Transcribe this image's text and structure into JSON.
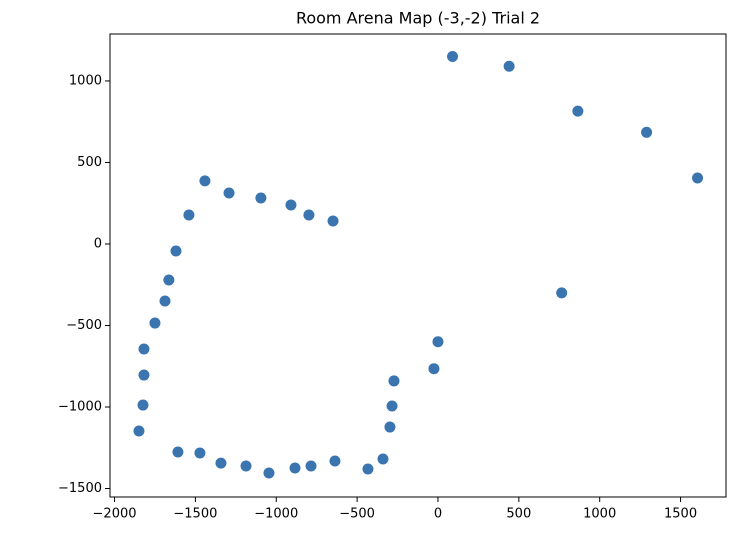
{
  "chart_data": {
    "type": "scatter",
    "title": "Room Arena Map (-3,-2) Trial 2",
    "x": [
      90,
      440,
      865,
      1290,
      1605,
      765,
      0,
      -25,
      -272,
      -284,
      -297,
      -340,
      -433,
      -637,
      -785,
      -884,
      -1045,
      -1187,
      -1342,
      -1472,
      -1608,
      -1849,
      -1824,
      -1818,
      -1818,
      -1750,
      -1688,
      -1664,
      -1620,
      -1540,
      -1441,
      -1292,
      -1095,
      -909,
      -798,
      -649
    ],
    "values": [
      1150,
      1090,
      815,
      685,
      405,
      -300,
      -600,
      -765,
      -840,
      -994,
      -1123,
      -1319,
      -1380,
      -1331,
      -1362,
      -1374,
      -1405,
      -1362,
      -1344,
      -1282,
      -1276,
      -1147,
      -988,
      -804,
      -644,
      -485,
      -350,
      -221,
      -43,
      178,
      387,
      313,
      282,
      239,
      178,
      141
    ],
    "color": "#3b75af",
    "xlim": [
      -2028,
      1781
    ],
    "ylim": [
      -1552,
      1288
    ],
    "xticks": [
      {
        "value": -2000,
        "label": "−2000"
      },
      {
        "value": -1500,
        "label": "−1500"
      },
      {
        "value": -1000,
        "label": "−1000"
      },
      {
        "value": -500,
        "label": "−500"
      },
      0,
      500,
      1000,
      1500
    ],
    "yticks": [
      {
        "value": -1500,
        "label": "−1500"
      },
      {
        "value": -1000,
        "label": "−1000"
      },
      {
        "value": -500,
        "label": "−500"
      },
      0,
      500,
      1000
    ]
  }
}
